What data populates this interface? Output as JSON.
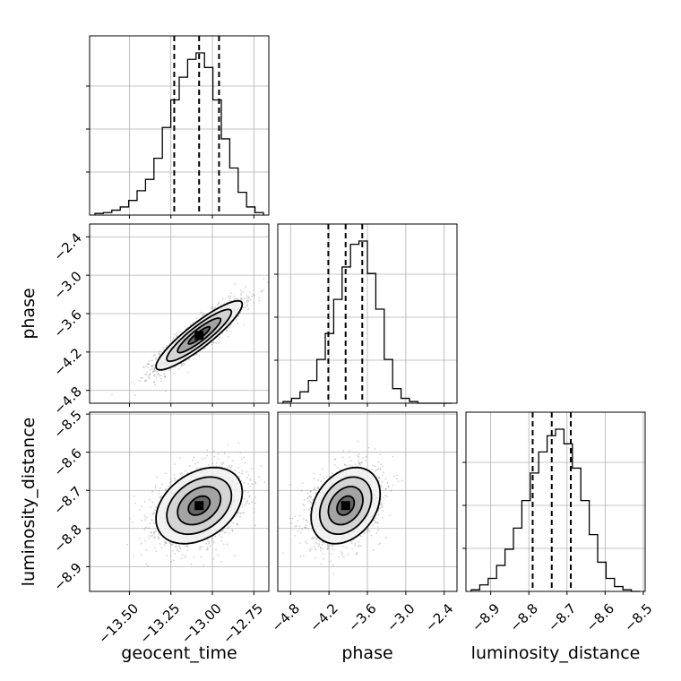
{
  "chart_data": {
    "type": "corner",
    "parameters": [
      "geocent_time",
      "phase",
      "luminosity_distance"
    ],
    "axis_labels": {
      "geocent_time": "geocent_time",
      "phase": "phase",
      "luminosity_distance": "luminosity_distance"
    },
    "ranges": {
      "geocent_time": [
        -13.74,
        -12.66
      ],
      "phase": [
        -5.0,
        -2.2
      ],
      "luminosity_distance": [
        -8.965,
        -8.495
      ]
    },
    "ticks": {
      "geocent_time": [
        -13.5,
        -13.25,
        -13.0,
        -12.75
      ],
      "phase": [
        -4.8,
        -4.2,
        -3.6,
        -3.0,
        -2.4
      ],
      "luminosity_distance": [
        -8.9,
        -8.8,
        -8.7,
        -8.6,
        -8.5
      ]
    },
    "tick_labels": {
      "geocent_time": [
        "−13.50",
        "−13.25",
        "−13.00",
        "−12.75"
      ],
      "phase": [
        "−4.8",
        "−4.2",
        "−3.6",
        "−3.0",
        "−2.4"
      ],
      "luminosity_distance": [
        "−8.9",
        "−8.8",
        "−8.7",
        "−8.6",
        "−8.5"
      ]
    },
    "quantiles": {
      "geocent_time": [
        -13.23,
        -13.08,
        -12.96
      ],
      "phase": [
        -4.21,
        -3.94,
        -3.68
      ],
      "luminosity_distance": [
        -8.79,
        -8.74,
        -8.69
      ]
    },
    "histograms": {
      "geocent_time": [
        0.01,
        0.015,
        0.03,
        0.05,
        0.09,
        0.15,
        0.22,
        0.35,
        0.54,
        0.71,
        0.85,
        0.96,
        1.0,
        0.91,
        0.71,
        0.47,
        0.29,
        0.14,
        0.05,
        0.015
      ],
      "phase": [
        0.01,
        0.03,
        0.07,
        0.14,
        0.27,
        0.43,
        0.64,
        0.84,
        0.98,
        1.0,
        0.8,
        0.58,
        0.27,
        0.09,
        0.03,
        0.01,
        0.0,
        0.0,
        0.0,
        0.0
      ],
      "luminosity_distance": [
        0.01,
        0.04,
        0.08,
        0.16,
        0.26,
        0.39,
        0.56,
        0.73,
        0.86,
        0.96,
        1.0,
        0.91,
        0.76,
        0.56,
        0.35,
        0.18,
        0.08,
        0.03,
        0.01,
        0.0
      ]
    },
    "gaussian_2d": {
      "geocent_time": {
        "mean": -13.08,
        "sd": 0.13
      },
      "phase": {
        "mean": -3.94,
        "sd": 0.27
      },
      "luminosity_distance": {
        "mean": -8.74,
        "sd": 0.05
      },
      "correlations": {
        "geocent_time|phase": 0.9,
        "geocent_time|luminosity_distance": 0.35,
        "phase|luminosity_distance": 0.3
      }
    },
    "contour_levels_sigma": [
      0.5,
      1.0,
      1.5,
      2.0
    ],
    "grid": true,
    "histogram_style": "step",
    "quantile_line_style": "dashed"
  }
}
